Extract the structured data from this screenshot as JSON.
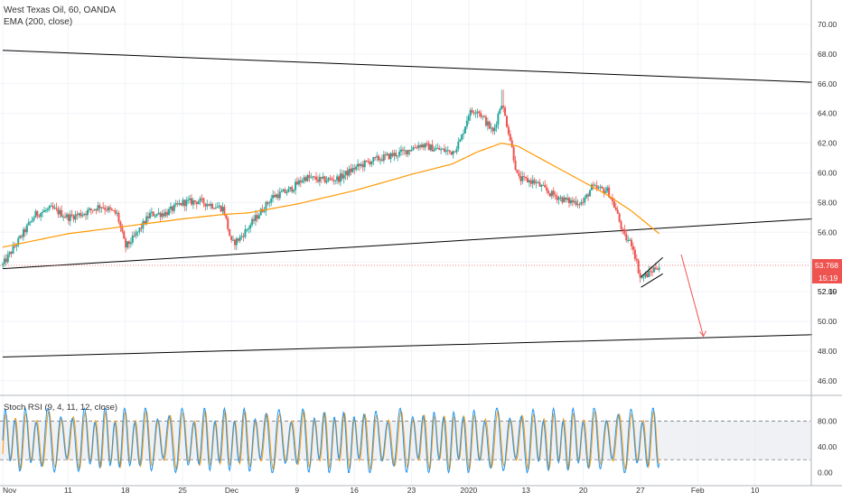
{
  "chart_data": [
    {
      "type": "candlestick",
      "symbol_label": "West Texas Oil, 60, OANDA",
      "indicator_label": "EMA (200, close)",
      "y_axis": {
        "ticks": [
          "70.00",
          "68.00",
          "66.00",
          "64.00",
          "62.00",
          "60.00",
          "58.00",
          "56.00",
          "54.00",
          "52.00",
          "50.00",
          "48.00",
          "46.00"
        ],
        "range": [
          45.5,
          71.5
        ]
      },
      "x_axis": {
        "ticks": [
          "Nov",
          "11",
          "18",
          "25",
          "Dec",
          "9",
          "16",
          "23",
          "2020",
          "13",
          "20",
          "27",
          "Feb",
          "10"
        ]
      },
      "price_tags": {
        "last": "53.768",
        "countdown": "15:19",
        "secondary": "52.19"
      },
      "colors": {
        "up": "#26a69a",
        "down": "#ef5350",
        "ema": "#ff9800",
        "trendline": "#000000",
        "last_price_line": "#ef5350",
        "projection": "#ef5350"
      },
      "series": [
        {
          "kind": "price",
          "x": [
            "Nov",
            "11",
            "18",
            "25",
            "Dec",
            "9",
            "16",
            "23",
            "2020",
            "13",
            "20",
            "27"
          ],
          "values": [
            54.0,
            57.0,
            56.5,
            57.8,
            55.5,
            58.7,
            59.5,
            61.2,
            61.2,
            59.0,
            58.0,
            53.8
          ]
        },
        {
          "name": "EMA (200, close)",
          "kind": "ema",
          "values": [
            55.0,
            56.0,
            56.6,
            57.1,
            57.3,
            58.0,
            58.8,
            59.9,
            60.8,
            61.8,
            59.4,
            56.0
          ]
        }
      ],
      "annotations": [
        {
          "type": "trendline",
          "from": {
            "date": "Oct 31",
            "price": 68.25
          },
          "to": {
            "date": "Feb 14",
            "price": 66.1
          }
        },
        {
          "type": "trendline",
          "from": {
            "date": "Oct 31",
            "price": 53.55
          },
          "to": {
            "date": "Feb 14",
            "price": 56.9
          }
        },
        {
          "type": "trendline",
          "from": {
            "date": "Oct 31",
            "price": 47.6
          },
          "to": {
            "date": "Feb 14",
            "price": 49.1
          }
        },
        {
          "type": "projection_arrow",
          "from": {
            "date": "Jan 29",
            "price": 54.5
          },
          "to": {
            "date": "Jan 30",
            "price": 49.0
          }
        },
        {
          "type": "flag_channel",
          "date": "Jan 27"
        }
      ]
    },
    {
      "type": "line",
      "title": "Stoch RSI (9, 4, 11, 12, close)",
      "y_axis": {
        "ticks": [
          "80.00",
          "40.00",
          "0.00"
        ],
        "range": [
          -8,
          100
        ],
        "bands": [
          20,
          80
        ]
      },
      "series": [
        {
          "kind": "k",
          "color": "#2196f3"
        },
        {
          "kind": "d",
          "color": "#ff9800"
        }
      ],
      "oscillation_cycles": 60
    }
  ]
}
